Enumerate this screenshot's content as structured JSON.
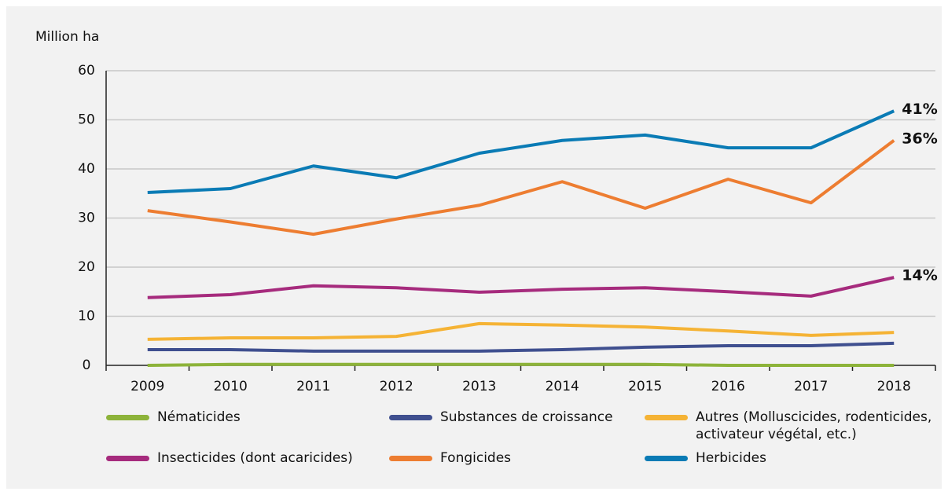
{
  "chart_data": {
    "type": "line",
    "y_label": "Million ha",
    "categories": [
      "2009",
      "2010",
      "2011",
      "2012",
      "2013",
      "2014",
      "2015",
      "2016",
      "2017",
      "2018"
    ],
    "series": [
      {
        "name": "Nématicides",
        "color": "#8db33a",
        "values": [
          0,
          0.2,
          0.2,
          0.2,
          0.2,
          0.2,
          0.2,
          0,
          0,
          0
        ]
      },
      {
        "name": "Substances de croissance",
        "color": "#3f4f8f",
        "values": [
          3.2,
          3.2,
          2.9,
          2.9,
          2.9,
          3.2,
          3.7,
          4,
          4,
          4.5
        ]
      },
      {
        "name": "Autres (Molluscicides, rodenticides, activateur végétal, etc.)",
        "color": "#f5b335",
        "values": [
          5.3,
          5.6,
          5.6,
          5.9,
          8.5,
          8.2,
          7.8,
          7,
          6.1,
          6.7
        ]
      },
      {
        "name": "Insecticides (dont acaricides)",
        "color": "#a62b7d",
        "values": [
          13.8,
          14.4,
          16.2,
          15.8,
          14.9,
          15.5,
          15.8,
          15,
          14.1,
          17.9
        ]
      },
      {
        "name": "Fongicides",
        "color": "#ed7d31",
        "values": [
          31.5,
          29.2,
          26.7,
          29.8,
          32.6,
          37.4,
          32,
          37.9,
          33.1,
          45.8
        ]
      },
      {
        "name": "Herbicides",
        "color": "#0a7bb5",
        "values": [
          35.2,
          36,
          40.6,
          38.2,
          43.2,
          45.8,
          46.9,
          44.3,
          44.3,
          51.8
        ]
      }
    ],
    "annotations": [
      {
        "text": "41%",
        "color": "#0a7bb5"
      },
      {
        "text": "36%",
        "color": "#ed7d31"
      },
      {
        "text": "14%",
        "color": "#a62b7d"
      }
    ],
    "ylim": [
      0,
      60
    ],
    "yticks": [
      0,
      10,
      20,
      30,
      40,
      50,
      60
    ],
    "grid": true
  }
}
